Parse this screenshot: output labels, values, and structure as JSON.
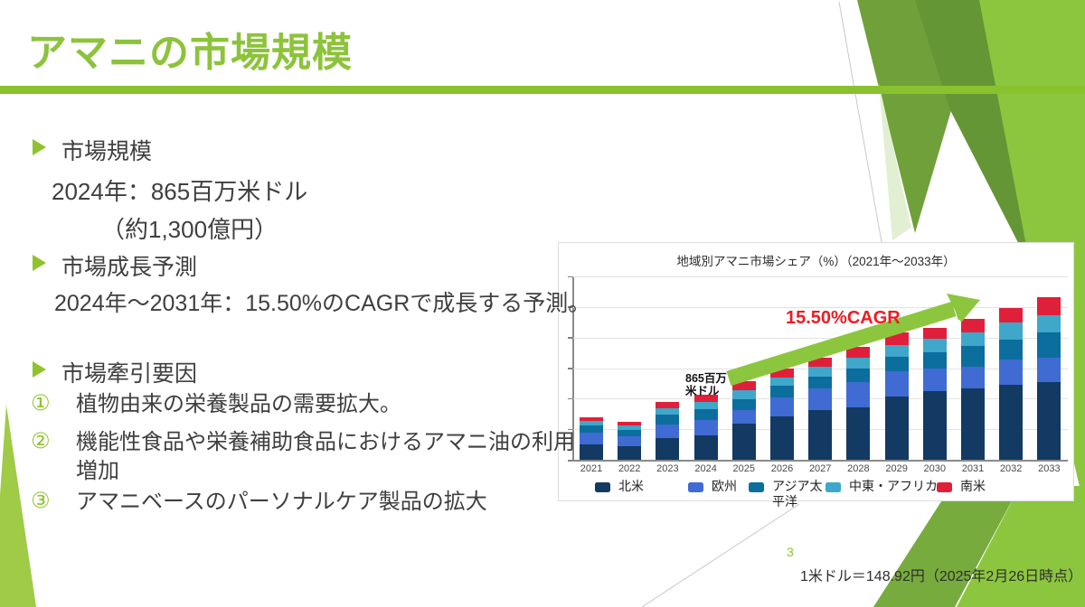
{
  "slide": {
    "title": "アマニの市場規模",
    "page_number": "3",
    "footer_note": "1米ドル＝148.92円（2025年2月26日時点）"
  },
  "theme": {
    "accent_green": "#8CC33B",
    "arrow_green": "#8CC63F",
    "annotation_red": "#EC1C24"
  },
  "text": {
    "heading1": "市場規模",
    "line1": "2024年：865百万米ドル",
    "line2": "（約1,300億円）",
    "heading2": "市場成長予測",
    "line3": "2024年～2031年：15.50%のCAGRで成長する予測。",
    "heading3": "市場牽引要因",
    "item1_marker": "①",
    "item1": "植物由来の栄養製品の需要拡大。",
    "item2_marker": "②",
    "item2": "機能性食品や栄養補助食品におけるアマニ油の利用増加",
    "item3_marker": "③",
    "item3": "アマニベースのパーソナルケア製品の拡大"
  },
  "chart_data": {
    "type": "bar",
    "stacked": true,
    "title": "地域別アマニ市場シェア（%）（2021年～2033年）",
    "categories": [
      "2021",
      "2022",
      "2023",
      "2024",
      "2025",
      "2026",
      "2027",
      "2028",
      "2029",
      "2030",
      "2031",
      "2032",
      "2033"
    ],
    "series": [
      {
        "name": "北米",
        "color": "#123A62",
        "values": [
          17,
          15,
          24,
          27,
          40,
          48,
          55,
          58,
          70,
          76,
          79,
          83,
          86
        ]
      },
      {
        "name": "欧州",
        "color": "#3F6BD3",
        "values": [
          13,
          11,
          15,
          17,
          15,
          21,
          24,
          28,
          28,
          25,
          24,
          28,
          27
        ]
      },
      {
        "name": "アジア太平洋",
        "color": "#0C6E9C",
        "values": [
          8,
          7,
          11,
          12,
          12,
          13,
          13,
          15,
          16,
          18,
          23,
          22,
          28
        ]
      },
      {
        "name": "中東・アフリカ",
        "color": "#3FA7CA",
        "values": [
          5,
          5,
          7,
          8,
          10,
          9,
          11,
          12,
          13,
          15,
          15,
          19,
          19
        ]
      },
      {
        "name": "南米",
        "color": "#E0203A",
        "values": [
          4,
          4,
          7,
          8,
          10,
          10,
          10,
          12,
          14,
          12,
          15,
          16,
          20
        ]
      }
    ],
    "unit": "relative stacked height — y-axis shows tick marks only, no value labels",
    "ylim": [
      0,
      203
    ],
    "grid": true,
    "legend_position": "bottom",
    "annotations": [
      {
        "text_lines": [
          "865百万",
          "米ドル"
        ],
        "attached_to": "2024"
      },
      {
        "text": "15.50%CAGR",
        "color": "#EC1C24"
      },
      {
        "shape": "growth-arrow",
        "color": "#8CC63F",
        "from_year": "2025",
        "to_year": "2031"
      }
    ]
  }
}
